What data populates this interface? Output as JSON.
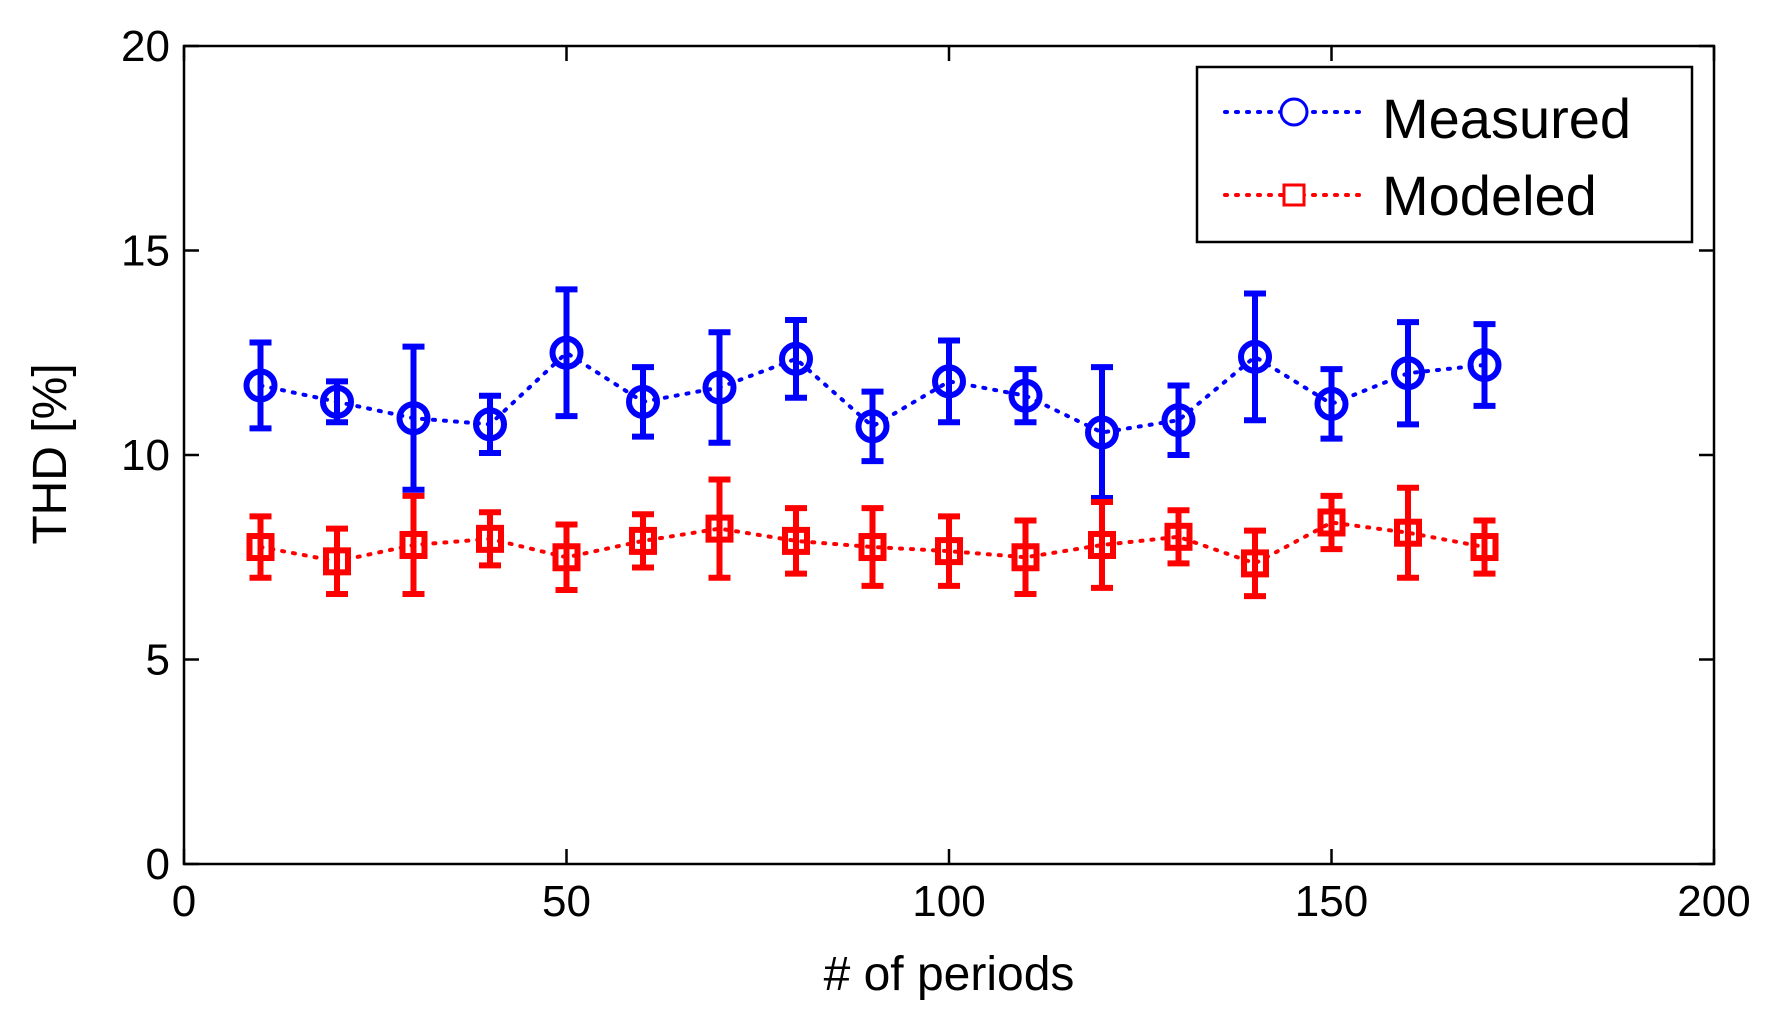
{
  "chart_data": {
    "type": "scatter",
    "title": "",
    "xlabel": "# of periods",
    "ylabel": "THD [%]",
    "xlim": [
      0,
      200
    ],
    "ylim": [
      0,
      20
    ],
    "xticks": [
      0,
      50,
      100,
      150,
      200
    ],
    "yticks": [
      0,
      5,
      10,
      15,
      20
    ],
    "grid": false,
    "legend_position": "top-right",
    "x": [
      10,
      20,
      30,
      40,
      50,
      60,
      70,
      80,
      90,
      100,
      110,
      120,
      130,
      140,
      150,
      160,
      170
    ],
    "series": [
      {
        "name": "Measured",
        "color": "#0000ff",
        "marker": "circle",
        "line_style": "dotted",
        "values": [
          11.7,
          11.3,
          10.9,
          10.75,
          12.5,
          11.3,
          11.65,
          12.35,
          10.7,
          11.8,
          11.45,
          10.55,
          10.85,
          12.4,
          11.25,
          12.0,
          12.2
        ],
        "error": [
          1.05,
          0.5,
          1.75,
          0.7,
          1.55,
          0.85,
          1.35,
          0.95,
          0.85,
          1.0,
          0.65,
          1.6,
          0.85,
          1.55,
          0.85,
          1.25,
          1.0
        ]
      },
      {
        "name": "Modeled",
        "color": "#ff0000",
        "marker": "square",
        "line_style": "dotted",
        "values": [
          7.75,
          7.4,
          7.8,
          7.95,
          7.5,
          7.9,
          8.2,
          7.9,
          7.75,
          7.65,
          7.5,
          7.8,
          8.0,
          7.35,
          8.35,
          8.1,
          7.75
        ],
        "error": [
          0.75,
          0.8,
          1.2,
          0.65,
          0.8,
          0.65,
          1.2,
          0.8,
          0.95,
          0.85,
          0.9,
          1.05,
          0.65,
          0.8,
          0.65,
          1.1,
          0.65
        ]
      }
    ]
  }
}
